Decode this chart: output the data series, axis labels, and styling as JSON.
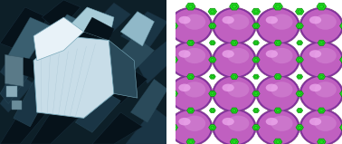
{
  "figsize": [
    3.78,
    1.59
  ],
  "dpi": 100,
  "background_color": "#ffffff",
  "left_panel": {
    "bg_color": "#0d1f28",
    "crystal_dark": "#06121a",
    "crystal_mid1": "#1a3545",
    "crystal_mid2": "#2a4a5a",
    "crystal_mid3": "#3a5f70",
    "crystal_bright": "#c8dde8",
    "crystal_highlight": "#e8f2f8",
    "crystal_edge": "#7aaabb"
  },
  "right_panel": {
    "bg_color": "#f8f8f8",
    "sphere_base": "#c060c0",
    "sphere_mid": "#d080d0",
    "sphere_highlight": "#eeaaee",
    "sphere_edge": "#804080",
    "linker_bright": "#22dd22",
    "linker_dark": "#0a8a0a",
    "linker_mid": "#15bb15",
    "chain_color": "#18aa18"
  }
}
